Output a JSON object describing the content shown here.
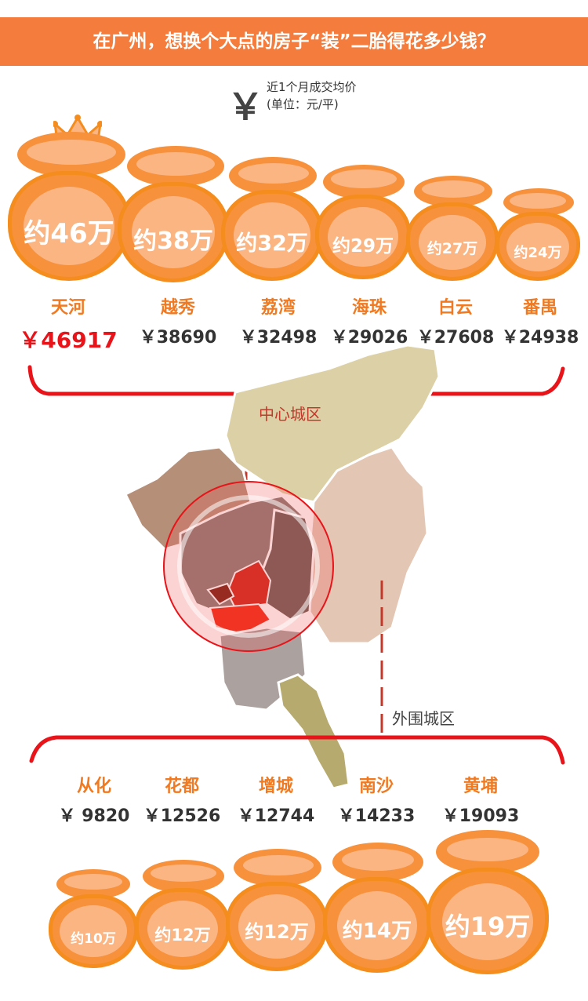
{
  "header": {
    "title": "在广州，想换个大点的房子“装”二胎得花多少钱？"
  },
  "legend": {
    "symbol": "￥",
    "line1": "近1个月成交均价",
    "line2": "(单位：元/平)"
  },
  "central": {
    "label": "中心城区",
    "districts": [
      {
        "name": "天河",
        "price": "￥46917",
        "bag": "约46万"
      },
      {
        "name": "越秀",
        "price": "￥38690",
        "bag": "约38万"
      },
      {
        "name": "荔湾",
        "price": "￥32498",
        "bag": "约32万"
      },
      {
        "name": "海珠",
        "price": "￥29026",
        "bag": "约29万"
      },
      {
        "name": "白云",
        "price": "￥27608",
        "bag": "约27万"
      },
      {
        "name": "番禺",
        "price": "￥24938",
        "bag": "约24万"
      }
    ]
  },
  "outer": {
    "label": "外围城区",
    "districts": [
      {
        "name": "从化",
        "price": "￥ 9820",
        "bag": "约10万"
      },
      {
        "name": "花都",
        "price": "￥12526",
        "bag": "约12万"
      },
      {
        "name": "增城",
        "price": "￥12744",
        "bag": "约12万"
      },
      {
        "name": "南沙",
        "price": "￥14233",
        "bag": "约14万"
      },
      {
        "name": "黄埔",
        "price": "￥19093",
        "bag": "约19万"
      }
    ]
  },
  "colors": {
    "banner": "#f47c3c",
    "bag": "#f7913b",
    "bag_light": "#fbb583",
    "accent_red": "#e8141a",
    "district_name": "#f07a22"
  }
}
